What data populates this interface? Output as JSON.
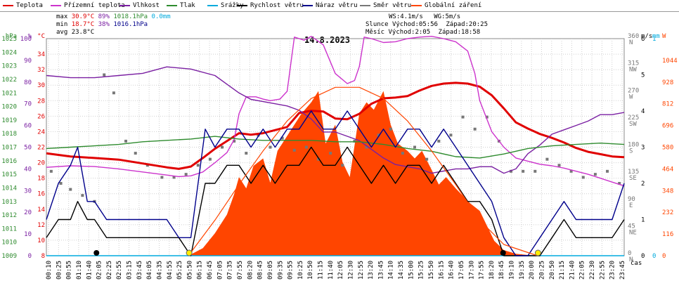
{
  "legend": [
    {
      "label": "Teplota",
      "color": "#e00000"
    },
    {
      "label": "Přízemní teplota",
      "color": "#cc33cc"
    },
    {
      "label": "Vlhkost",
      "color": "#7a1fa2"
    },
    {
      "label": "Tlak",
      "color": "#2e8b2e"
    },
    {
      "label": "Srážky",
      "color": "#00aadd"
    },
    {
      "label": "Rychlost větru",
      "color": "#000000"
    },
    {
      "label": "Náraz větru",
      "color": "#00008b"
    },
    {
      "label": "Směr větru",
      "color": "#777777"
    },
    {
      "label": "Globální záření",
      "color": "#ff4500"
    }
  ],
  "stats": {
    "max": {
      "label": "max",
      "temp": "30.9°C",
      "hum": "89%",
      "press": "1018.1hPa",
      "rain": "0.0mm"
    },
    "min": {
      "label": "min",
      "temp": "18.7°C",
      "hum": "38%",
      "press": "1016.1hPa"
    },
    "avg": {
      "label": "avg",
      "temp": "23.8°C"
    },
    "wind": {
      "ws": "WS:4.1m/s",
      "wg": "WG:5m/s"
    },
    "sun": {
      "label": "Slunce",
      "rise": "Východ:05:56",
      "set": "Západ:20:25"
    },
    "moon": {
      "label": "Měsíc",
      "rise": "Východ:2:05",
      "set": "Západ:18:58"
    }
  },
  "chart_data": {
    "type": "line",
    "title": "14.8.2023",
    "xlabel": "čas",
    "x_ticks": [
      "00:10",
      "00:25",
      "00:55",
      "01:10",
      "01:40",
      "02:05",
      "02:25",
      "02:55",
      "03:15",
      "03:45",
      "04:05",
      "04:35",
      "04:55",
      "05:25",
      "05:50",
      "06:15",
      "06:45",
      "07:05",
      "07:35",
      "07:55",
      "08:20",
      "08:45",
      "09:05",
      "09:35",
      "09:55",
      "10:25",
      "10:50",
      "11:15",
      "11:40",
      "12:05",
      "12:30",
      "12:55",
      "13:20",
      "13:45",
      "14:10",
      "14:35",
      "15:00",
      "15:25",
      "15:50",
      "16:15",
      "16:40",
      "17:05",
      "17:30",
      "17:55",
      "18:20",
      "18:45",
      "19:10",
      "19:35",
      "20:00",
      "20:25",
      "20:50",
      "21:15",
      "21:40",
      "22:05",
      "22:30",
      "22:55",
      "23:20",
      "23:45"
    ],
    "axes": {
      "press": {
        "label": "hPa",
        "color": "#2e8b2e",
        "range": [
          1009,
          1025
        ],
        "ticks": [
          1009,
          1010,
          1011,
          1012,
          1013,
          1014,
          1015,
          1016,
          1017,
          1018,
          1019,
          1020,
          1021,
          1022,
          1023,
          1024,
          1025
        ]
      },
      "hum": {
        "label": "%",
        "color": "#7a1fa2",
        "range": [
          0,
          100
        ],
        "ticks": [
          0,
          10,
          20,
          30,
          40,
          50,
          60,
          70,
          80,
          90,
          100
        ]
      },
      "temp": {
        "label": "°C",
        "color": "#e00000",
        "range": [
          8,
          36
        ],
        "ticks": [
          8,
          10,
          12,
          14,
          16,
          18,
          20,
          22,
          24,
          26,
          28,
          30,
          32,
          34
        ]
      },
      "wind": {
        "label": "m/s",
        "color": "#000000",
        "range": [
          0,
          6
        ],
        "ticks": [
          0,
          1,
          2,
          3,
          4,
          5,
          6
        ]
      },
      "dir": {
        "color": "#777777",
        "ticks": [
          "0 N",
          "45 NE",
          "90 E",
          "135 SE",
          "180 S",
          "225 SW",
          "270 W",
          "315 NW",
          "360 N"
        ]
      },
      "rain": {
        "label": "mm",
        "color": "#00aadd",
        "range": [
          0,
          1
        ],
        "ticks": [
          0,
          1
        ]
      },
      "rad": {
        "label": "W",
        "color": "#ff4500",
        "range": [
          0,
          1160
        ],
        "ticks": [
          0,
          116,
          232,
          348,
          464,
          580,
          696,
          812,
          928,
          1044
        ]
      }
    },
    "series": [
      {
        "name": "Teplota",
        "unit": "°C",
        "color": "#e00000",
        "x": [
          0,
          1,
          2,
          3,
          4,
          5,
          5.5,
          6,
          6.5,
          7,
          7.5,
          8,
          8.5,
          9,
          9.5,
          10,
          10.5,
          11,
          11.5,
          12,
          12.5,
          13,
          13.5,
          14,
          14.5,
          15,
          15.5,
          16,
          16.5,
          17,
          17.5,
          18,
          18.5,
          19,
          19.5,
          20,
          20.5,
          21,
          21.5,
          22,
          22.5,
          23,
          23.5,
          24
        ],
        "y": [
          21.2,
          20.8,
          20.6,
          20.4,
          19.9,
          19.4,
          19.2,
          19.5,
          20.6,
          21.8,
          22.8,
          23.8,
          23.6,
          23.8,
          24.2,
          24.6,
          26.4,
          26.7,
          26.6,
          25.7,
          25.6,
          26.3,
          27.6,
          28.3,
          28.4,
          28.6,
          29.3,
          29.9,
          30.2,
          30.3,
          30.2,
          29.8,
          28.7,
          27.0,
          25.2,
          24.4,
          23.7,
          23.2,
          22.6,
          21.9,
          21.4,
          21.1,
          20.8,
          20.7
        ]
      },
      {
        "name": "Přízemní teplota",
        "unit": "°C",
        "color": "#cc33cc",
        "x": [
          0,
          1,
          2,
          3,
          4,
          5,
          5.5,
          6,
          6.5,
          7,
          7.5,
          7.8,
          8,
          8.3,
          8.7,
          9,
          9.3,
          9.7,
          10,
          10.3,
          10.7,
          11,
          11.5,
          12,
          12.5,
          12.8,
          13,
          13.2,
          13.5,
          14,
          14.5,
          15,
          15.5,
          16,
          16.5,
          17,
          17.5,
          17.8,
          18,
          18.5,
          19,
          19.5,
          20,
          20.5,
          21,
          21.5,
          22,
          22.5,
          23,
          23.5,
          24
        ],
        "y": [
          19.4,
          19.6,
          19.5,
          19.2,
          18.8,
          18.4,
          18.2,
          18.3,
          18.8,
          20.0,
          21.3,
          23.0,
          26.3,
          28.5,
          28.5,
          28.2,
          28.0,
          28.2,
          29.2,
          36.2,
          35.8,
          36.3,
          35.2,
          31.5,
          30.2,
          30.6,
          32.4,
          36.2,
          36.0,
          35.5,
          35.6,
          36.0,
          36.2,
          36.3,
          36.0,
          35.6,
          34.4,
          31.5,
          28.0,
          24.0,
          22.0,
          20.6,
          20.2,
          19.8,
          19.6,
          19.3,
          18.9,
          18.5,
          18.0,
          17.5,
          17.0
        ]
      },
      {
        "name": "Vlhkost",
        "unit": "%",
        "color": "#7a1fa2",
        "x": [
          0,
          1,
          2,
          3,
          4,
          5,
          6,
          7,
          7.5,
          8,
          8.5,
          9,
          9.5,
          10,
          10.5,
          11,
          11.5,
          12,
          12.5,
          13,
          13.5,
          14,
          14.5,
          15,
          15.5,
          16,
          16.5,
          17,
          17.5,
          18,
          18.5,
          19,
          19.5,
          20,
          20.5,
          21,
          21.5,
          22,
          22.5,
          23,
          23.5,
          24
        ],
        "y": [
          83,
          82,
          82,
          83,
          84,
          87,
          86,
          83,
          79,
          75,
          72,
          71,
          70,
          69,
          67,
          63,
          57,
          57,
          55,
          53,
          49,
          45,
          42,
          41,
          40,
          38,
          39,
          40,
          40,
          41,
          41,
          38,
          40,
          47,
          51,
          56,
          58,
          60,
          62,
          65,
          65,
          66
        ]
      },
      {
        "name": "Tlak",
        "unit": "hPa",
        "color": "#2e8b2e",
        "x": [
          0,
          1,
          2,
          3,
          4,
          5,
          6,
          7,
          8,
          9,
          10,
          11,
          12,
          13,
          14,
          15,
          16,
          17,
          18,
          19,
          20,
          21,
          22,
          23,
          24
        ],
        "y": [
          1016.9,
          1017.0,
          1017.1,
          1017.2,
          1017.4,
          1017.5,
          1017.6,
          1017.8,
          1017.6,
          1017.5,
          1017.5,
          1017.5,
          1017.4,
          1017.4,
          1017.2,
          1016.9,
          1016.7,
          1016.3,
          1016.2,
          1016.5,
          1016.9,
          1017.1,
          1017.2,
          1017.3,
          1017.2
        ]
      },
      {
        "name": "Srážky",
        "unit": "mm",
        "color": "#00aadd",
        "x": [
          0,
          24
        ],
        "y": [
          0,
          0
        ]
      },
      {
        "name": "Rychlost větru",
        "unit": "m/s",
        "color": "#000000",
        "x": [
          0,
          0.5,
          1,
          1.3,
          1.7,
          2,
          2.5,
          3,
          3.5,
          4,
          4.5,
          5,
          5.5,
          6,
          6.3,
          6.6,
          7,
          7.5,
          8,
          8.5,
          9,
          9.5,
          10,
          10.5,
          11,
          11.5,
          12,
          12.5,
          13,
          13.5,
          14,
          14.5,
          15,
          15.5,
          16,
          16.5,
          17,
          17.5,
          18,
          18.5,
          19,
          19.5,
          20,
          20.5,
          21,
          21.5,
          22,
          22.5,
          23,
          23.5,
          24
        ],
        "y": [
          0.5,
          1,
          1,
          1.5,
          1,
          1,
          0.5,
          0.5,
          0.5,
          0.5,
          0.5,
          0.5,
          0.5,
          0,
          1,
          2,
          2,
          2.5,
          2.5,
          2,
          2.5,
          2,
          2.5,
          2.5,
          3,
          2.5,
          2.5,
          3,
          2.5,
          2,
          2.5,
          2,
          2.5,
          2.5,
          2,
          2.5,
          2,
          1.5,
          1.5,
          1,
          0,
          0,
          0,
          0,
          0.5,
          1,
          0.5,
          0.5,
          0.5,
          0.5,
          1
        ]
      },
      {
        "name": "Náraz větru",
        "unit": "m/s",
        "color": "#00008b",
        "x": [
          0,
          0.5,
          1,
          1.3,
          1.7,
          2,
          2.5,
          3,
          3.5,
          4,
          4.5,
          5,
          5.5,
          6,
          6.3,
          6.6,
          7,
          7.5,
          8,
          8.5,
          9,
          9.5,
          10,
          10.5,
          11,
          11.5,
          12,
          12.5,
          13,
          13.5,
          14,
          14.5,
          15,
          15.5,
          16,
          16.5,
          17,
          17.5,
          18,
          18.5,
          19,
          19.5,
          20,
          20.5,
          21,
          21.5,
          22,
          22.5,
          23,
          23.5,
          24
        ],
        "y": [
          1,
          2,
          2.5,
          3,
          1.5,
          1.5,
          1,
          1,
          1,
          1,
          1,
          1,
          0.5,
          0.5,
          2,
          3.5,
          3,
          3.5,
          3.5,
          3,
          3.5,
          3,
          3.5,
          3.5,
          4,
          3.5,
          3.5,
          4,
          3.5,
          3,
          3.5,
          3,
          3.5,
          3.5,
          3,
          3.5,
          3,
          2.5,
          2,
          1.5,
          0.5,
          0,
          0,
          0.5,
          1,
          1.5,
          1,
          1,
          1,
          1,
          2
        ]
      },
      {
        "name": "Směr větru",
        "unit": "°",
        "color": "#777777",
        "x": [
          0.2,
          0.6,
          1,
          1.5,
          2,
          2.4,
          2.8,
          3.3,
          3.7,
          4.2,
          4.8,
          5.3,
          5.8,
          6.3,
          6.8,
          7.3,
          7.8,
          8.3,
          8.8,
          9.3,
          9.8,
          10.3,
          10.8,
          11.3,
          11.8,
          12.3,
          12.8,
          13.3,
          13.8,
          14.3,
          14.8,
          15.3,
          15.8,
          16.3,
          16.8,
          17.3,
          17.8,
          18.3,
          18.8,
          19.3,
          19.8,
          20.3,
          20.8,
          21.3,
          21.8,
          22.3,
          22.8,
          23.3,
          23.8
        ],
        "y": [
          140,
          120,
          110,
          100,
          90,
          300,
          270,
          190,
          170,
          150,
          130,
          130,
          135,
          150,
          160,
          180,
          190,
          170,
          200,
          180,
          195,
          175,
          180,
          160,
          170,
          150,
          190,
          180,
          200,
          210,
          170,
          180,
          160,
          190,
          200,
          230,
          210,
          230,
          190,
          140,
          140,
          140,
          160,
          150,
          140,
          130,
          135,
          140,
          120
        ]
      },
      {
        "name": "Globální záření",
        "unit": "W",
        "color": "#ff4500",
        "x": [
          5.9,
          6.5,
          7,
          7.5,
          7.8,
          8,
          8.3,
          8.6,
          9,
          9.3,
          9.6,
          10,
          10.3,
          10.6,
          11,
          11.3,
          11.6,
          12,
          12.3,
          12.6,
          13,
          13.3,
          13.6,
          14,
          14.3,
          14.6,
          15,
          15.3,
          15.6,
          16,
          16.3,
          16.6,
          17,
          17.3,
          17.6,
          18,
          18.3,
          18.6,
          19,
          19.5,
          20.3
        ],
        "y": [
          0,
          40,
          120,
          220,
          330,
          420,
          360,
          480,
          520,
          390,
          560,
          640,
          700,
          760,
          820,
          880,
          600,
          700,
          500,
          420,
          760,
          820,
          780,
          880,
          700,
          600,
          560,
          520,
          560,
          460,
          380,
          420,
          360,
          320,
          280,
          240,
          160,
          80,
          30,
          10,
          0
        ]
      },
      {
        "name": "Globální záření (teor.)",
        "unit": "W",
        "color": "#ff4500",
        "x": [
          5.9,
          7,
          8,
          9,
          10,
          11,
          12,
          13,
          14,
          15,
          16,
          17,
          18,
          19,
          20.4
        ],
        "y": [
          0,
          190,
          380,
          560,
          720,
          840,
          900,
          900,
          840,
          720,
          560,
          380,
          190,
          60,
          0
        ]
      }
    ],
    "markers": [
      {
        "type": "moonrise",
        "time": 2.08
      },
      {
        "type": "sunrise",
        "time": 5.93
      },
      {
        "type": "moonset",
        "time": 18.97
      },
      {
        "type": "sunset",
        "time": 20.42
      }
    ]
  }
}
